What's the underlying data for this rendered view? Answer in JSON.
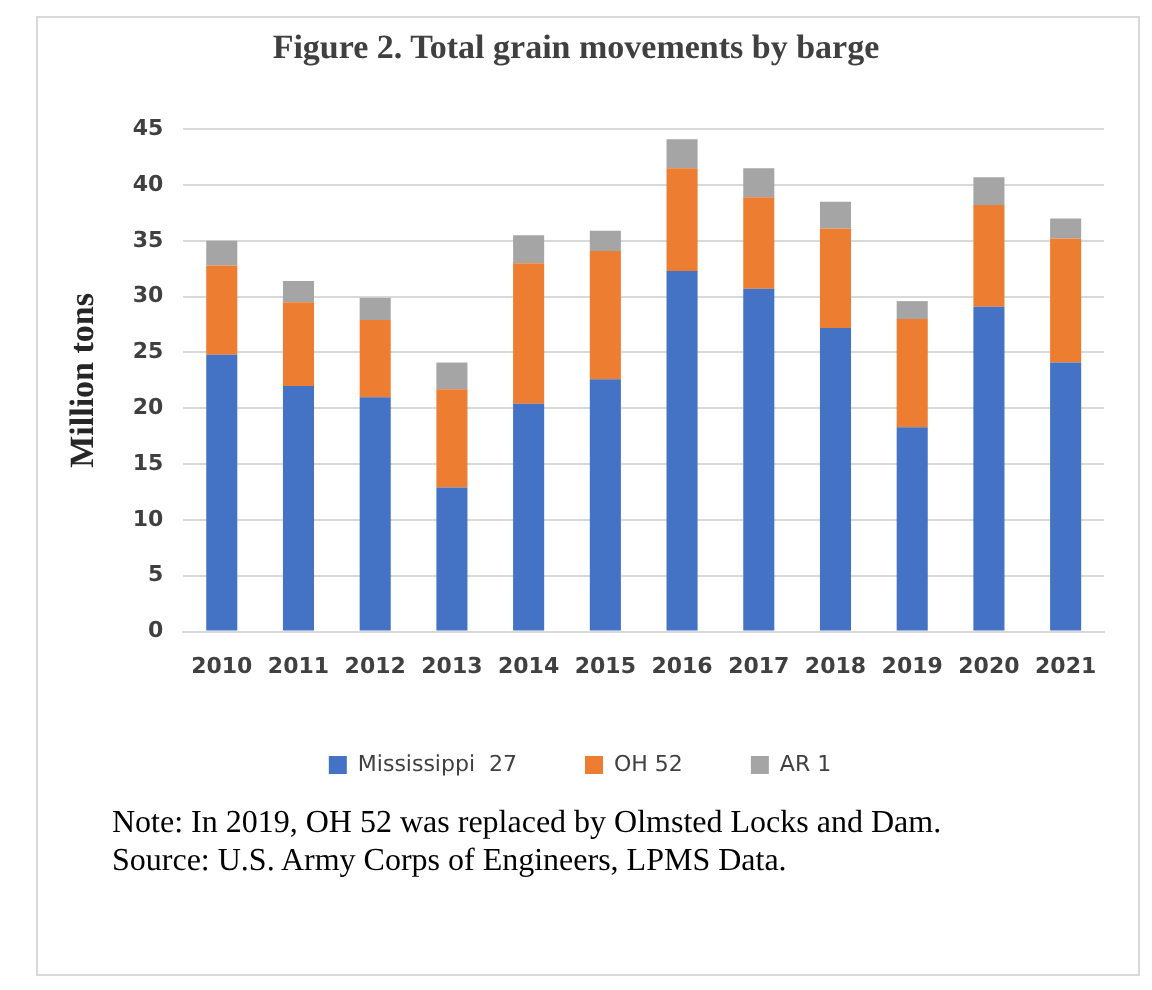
{
  "chart_data": {
    "type": "bar",
    "title": "Figure  2. Total grain movements by barge",
    "ylabel": "Million tons",
    "categories": [
      "2010",
      "2011",
      "2012",
      "2013",
      "2014",
      "2015",
      "2016",
      "2017",
      "2018",
      "2019",
      "2020",
      "2021"
    ],
    "series": [
      {
        "name": "Mississippi  27",
        "color": "#4472c4",
        "values": [
          24.8,
          22.0,
          21.0,
          12.9,
          20.4,
          22.6,
          32.3,
          30.7,
          27.2,
          18.3,
          29.1,
          24.1
        ]
      },
      {
        "name": "OH 52",
        "color": "#ed7d31",
        "values": [
          8.0,
          7.5,
          6.9,
          8.8,
          12.6,
          11.5,
          9.2,
          8.2,
          8.9,
          9.7,
          9.1,
          11.1
        ]
      },
      {
        "name": "AR 1",
        "color": "#a5a5a5",
        "values": [
          2.2,
          1.9,
          2.0,
          2.4,
          2.5,
          1.8,
          2.6,
          2.6,
          2.4,
          1.6,
          2.5,
          1.8
        ]
      }
    ],
    "stacked": true,
    "ylim": [
      0,
      45
    ],
    "yticks": [
      0,
      5,
      10,
      15,
      20,
      25,
      30,
      35,
      40,
      45
    ],
    "grid": "y",
    "legend": "bottom",
    "annotations": [
      "Note: In 2019, OH 52 was replaced by Olmsted  Locks and Dam.",
      "Source: U.S. Army  Corps of Engineers,  LPMS Data."
    ]
  }
}
